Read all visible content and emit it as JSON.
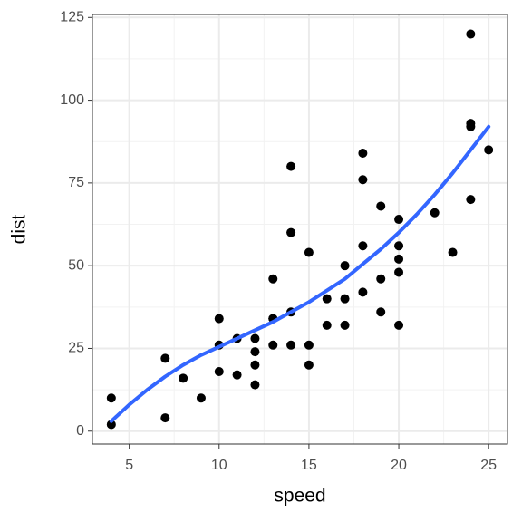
{
  "chart_data": {
    "type": "scatter",
    "xlabel": "speed",
    "ylabel": "dist",
    "xlim": [
      2.95,
      26.05
    ],
    "ylim": [
      -3.9,
      125.9
    ],
    "xticks": [
      5,
      10,
      15,
      20,
      25
    ],
    "yticks": [
      0,
      25,
      50,
      75,
      100,
      125
    ],
    "x_minor_ticks": [
      7.5,
      12.5,
      17.5,
      22.5
    ],
    "y_minor_ticks": [
      12.5,
      37.5,
      62.5,
      87.5,
      112.5
    ],
    "grid": true,
    "series": [
      {
        "type": "scatter",
        "color": "#000000",
        "x": [
          4,
          4,
          7,
          7,
          8,
          9,
          10,
          10,
          10,
          11,
          11,
          12,
          12,
          12,
          12,
          13,
          13,
          13,
          13,
          14,
          14,
          14,
          14,
          15,
          15,
          15,
          16,
          16,
          17,
          17,
          17,
          18,
          18,
          18,
          18,
          19,
          19,
          19,
          20,
          20,
          20,
          20,
          20,
          22,
          23,
          24,
          24,
          24,
          24,
          25
        ],
        "values": [
          2,
          10,
          4,
          22,
          16,
          10,
          18,
          26,
          34,
          17,
          28,
          14,
          20,
          24,
          28,
          26,
          34,
          34,
          46,
          26,
          36,
          60,
          80,
          20,
          26,
          54,
          32,
          40,
          32,
          40,
          50,
          42,
          56,
          76,
          84,
          36,
          46,
          68,
          32,
          48,
          52,
          56,
          64,
          66,
          54,
          70,
          92,
          93,
          120,
          85
        ]
      },
      {
        "type": "line",
        "color": "#3366FF",
        "x": [
          4,
          5,
          6,
          7,
          8,
          9,
          10,
          11,
          12,
          13,
          14,
          15,
          16,
          17,
          18,
          19,
          20,
          21,
          22,
          23,
          24,
          25
        ],
        "values": [
          3,
          8,
          12.5,
          16.5,
          20,
          23,
          25.5,
          28,
          30.5,
          33,
          36,
          39,
          42.5,
          46,
          50.5,
          55,
          60,
          65.5,
          71.5,
          78,
          85,
          92
        ]
      }
    ]
  }
}
